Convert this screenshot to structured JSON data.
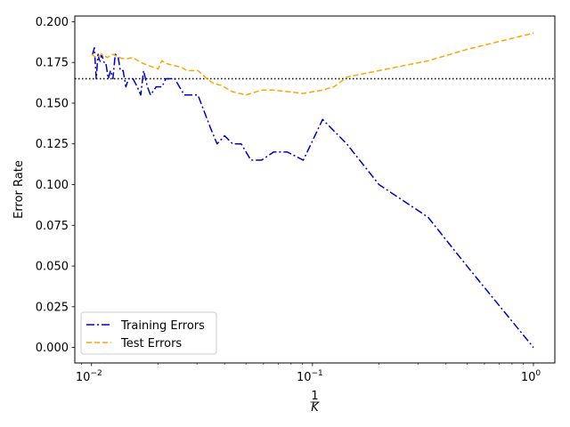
{
  "chart_data": {
    "type": "line",
    "xscale": "log",
    "xlim": [
      0.0084,
      1.25
    ],
    "ylim": [
      -0.0095,
      0.2035
    ],
    "xlabel_num": "1",
    "xlabel_den": "K",
    "ylabel": "Error Rate",
    "x_ticks": [
      {
        "value": 0.01,
        "base": "10",
        "exp": "−2"
      },
      {
        "value": 0.1,
        "base": "10",
        "exp": "−1"
      },
      {
        "value": 1,
        "base": "10",
        "exp": "0"
      }
    ],
    "y_ticks": [
      {
        "value": 0.0,
        "label": "0.000"
      },
      {
        "value": 0.025,
        "label": "0.025"
      },
      {
        "value": 0.05,
        "label": "0.050"
      },
      {
        "value": 0.075,
        "label": "0.075"
      },
      {
        "value": 0.1,
        "label": "0.100"
      },
      {
        "value": 0.125,
        "label": "0.125"
      },
      {
        "value": 0.15,
        "label": "0.150"
      },
      {
        "value": 0.175,
        "label": "0.175"
      },
      {
        "value": 0.2,
        "label": "0.200"
      }
    ],
    "reference_line": {
      "y": 0.165,
      "color": "#000000",
      "style": "dotted"
    },
    "legend": {
      "position": "lower-left"
    },
    "series": [
      {
        "name": "Training Errors",
        "color": "#0000cc",
        "style": "dashdot",
        "points": [
          [
            0.0101,
            0.18
          ],
          [
            0.0103,
            0.184
          ],
          [
            0.0105,
            0.165
          ],
          [
            0.0107,
            0.18
          ],
          [
            0.0109,
            0.175
          ],
          [
            0.0111,
            0.18
          ],
          [
            0.0114,
            0.175
          ],
          [
            0.0116,
            0.175
          ],
          [
            0.0119,
            0.165
          ],
          [
            0.0122,
            0.17
          ],
          [
            0.0125,
            0.165
          ],
          [
            0.0128,
            0.18
          ],
          [
            0.0132,
            0.178
          ],
          [
            0.0135,
            0.17
          ],
          [
            0.0139,
            0.17
          ],
          [
            0.0143,
            0.16
          ],
          [
            0.0147,
            0.165
          ],
          [
            0.0154,
            0.165
          ],
          [
            0.0161,
            0.16
          ],
          [
            0.0167,
            0.155
          ],
          [
            0.0172,
            0.17
          ],
          [
            0.0179,
            0.16
          ],
          [
            0.0185,
            0.155
          ],
          [
            0.0196,
            0.16
          ],
          [
            0.0208,
            0.16
          ],
          [
            0.0217,
            0.165
          ],
          [
            0.0238,
            0.165
          ],
          [
            0.025,
            0.16
          ],
          [
            0.0263,
            0.155
          ],
          [
            0.0303,
            0.155
          ],
          [
            0.0345,
            0.135
          ],
          [
            0.037,
            0.125
          ],
          [
            0.04,
            0.13
          ],
          [
            0.0435,
            0.125
          ],
          [
            0.0476,
            0.125
          ],
          [
            0.0526,
            0.115
          ],
          [
            0.0588,
            0.115
          ],
          [
            0.0667,
            0.12
          ],
          [
            0.0769,
            0.12
          ],
          [
            0.0909,
            0.115
          ],
          [
            0.1111,
            0.14
          ],
          [
            0.1429,
            0.125
          ],
          [
            0.2,
            0.1
          ],
          [
            0.3333,
            0.08
          ],
          [
            0.5,
            0.05
          ],
          [
            1.0,
            0.0
          ]
        ]
      },
      {
        "name": "Test Errors",
        "color": "#ffa500",
        "style": "dashed",
        "points": [
          [
            0.01,
            0.18
          ],
          [
            0.0105,
            0.178
          ],
          [
            0.0111,
            0.18
          ],
          [
            0.0118,
            0.178
          ],
          [
            0.0125,
            0.18
          ],
          [
            0.0133,
            0.178
          ],
          [
            0.0143,
            0.177
          ],
          [
            0.0154,
            0.178
          ],
          [
            0.0167,
            0.175
          ],
          [
            0.0182,
            0.173
          ],
          [
            0.02,
            0.171
          ],
          [
            0.0208,
            0.176
          ],
          [
            0.0222,
            0.174
          ],
          [
            0.0238,
            0.173
          ],
          [
            0.0256,
            0.172
          ],
          [
            0.027,
            0.17
          ],
          [
            0.0303,
            0.17
          ],
          [
            0.0333,
            0.165
          ],
          [
            0.0357,
            0.162
          ],
          [
            0.0385,
            0.161
          ],
          [
            0.0435,
            0.157
          ],
          [
            0.05,
            0.155
          ],
          [
            0.0588,
            0.158
          ],
          [
            0.0667,
            0.158
          ],
          [
            0.0909,
            0.156
          ],
          [
            0.1111,
            0.158
          ],
          [
            0.125,
            0.16
          ],
          [
            0.1429,
            0.166
          ],
          [
            0.2,
            0.17
          ],
          [
            0.3333,
            0.176
          ],
          [
            0.5,
            0.183
          ],
          [
            1.0,
            0.193
          ]
        ]
      }
    ]
  }
}
